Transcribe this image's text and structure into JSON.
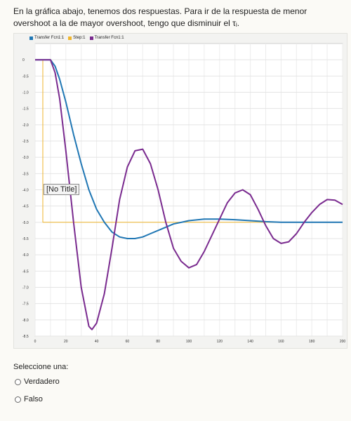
{
  "question": {
    "text": "En la gráfica abajo, tenemos dos respuestas. Para ir de la respuesta de menor overshoot a la de mayor overshoot, tengo que disminuir el τᵢ."
  },
  "chart": {
    "tooltip_text": "[No Title]",
    "legend": [
      {
        "label": "Transfer Fcn1:1",
        "color": "#2077b4"
      },
      {
        "label": "Step:1",
        "color": "#efb52c"
      },
      {
        "label": "Transfer Fcn1:1",
        "color": "#7a2b8f"
      }
    ]
  },
  "chart_data": {
    "type": "line",
    "xlim": [
      0,
      200
    ],
    "ylim": [
      -8.5,
      0.5
    ],
    "x_ticks": [
      0,
      20,
      40,
      60,
      80,
      100,
      120,
      140,
      160,
      180,
      200
    ],
    "x_tick_labels": [
      "0",
      "20",
      "40",
      "60",
      "80",
      "100",
      "120",
      "140",
      "160",
      "180",
      "200"
    ],
    "y_ticks": [
      0,
      -0.5,
      -1,
      -1.5,
      -2,
      -2.5,
      -3,
      -3.5,
      -4,
      -4.5,
      -5,
      -5.5,
      -6,
      -6.5,
      -7,
      -7.5,
      -8,
      -8.5
    ],
    "y_tick_labels": [
      "0",
      "-0.5",
      "-1.0",
      "-1.5",
      "-2.0",
      "-2.5",
      "-3.0",
      "-3.5",
      "-4.0",
      "-4.5",
      "-5.0",
      "-5.5",
      "-6.0",
      "-6.5",
      "-7.0",
      "-7.5",
      "-8.0",
      "-8.5"
    ],
    "grid": true,
    "legend_position": "top-left",
    "series": [
      {
        "name": "Step:1",
        "color": "#efb52c",
        "x": [
          0,
          5,
          5,
          200
        ],
        "y": [
          0,
          0,
          -5,
          -5
        ]
      },
      {
        "name": "Transfer Fcn1:1",
        "color": "#2077b4",
        "x": [
          0,
          5,
          10,
          13,
          16,
          20,
          25,
          30,
          35,
          40,
          45,
          50,
          55,
          60,
          65,
          70,
          75,
          80,
          85,
          90,
          100,
          110,
          120,
          130,
          140,
          150,
          160,
          180,
          200
        ],
        "y": [
          0,
          0,
          0,
          -0.2,
          -0.6,
          -1.3,
          -2.3,
          -3.2,
          -4.0,
          -4.6,
          -5.0,
          -5.3,
          -5.45,
          -5.5,
          -5.5,
          -5.45,
          -5.35,
          -5.25,
          -5.15,
          -5.05,
          -4.95,
          -4.9,
          -4.9,
          -4.92,
          -4.95,
          -4.98,
          -5.0,
          -5.0,
          -5.0
        ]
      },
      {
        "name": "Transfer Fcn1:1",
        "color": "#7a2b8f",
        "x": [
          0,
          5,
          10,
          13,
          16,
          20,
          25,
          30,
          35,
          37,
          40,
          45,
          50,
          55,
          60,
          65,
          70,
          75,
          80,
          85,
          90,
          95,
          100,
          105,
          110,
          120,
          125,
          130,
          135,
          140,
          145,
          150,
          155,
          160,
          165,
          170,
          175,
          180,
          185,
          190,
          195,
          200
        ],
        "y": [
          0,
          0,
          0,
          -0.4,
          -1.2,
          -2.8,
          -5.0,
          -7.0,
          -8.2,
          -8.3,
          -8.1,
          -7.2,
          -5.8,
          -4.3,
          -3.3,
          -2.8,
          -2.75,
          -3.2,
          -4.0,
          -5.0,
          -5.8,
          -6.2,
          -6.4,
          -6.3,
          -5.9,
          -4.9,
          -4.4,
          -4.1,
          -4.0,
          -4.15,
          -4.6,
          -5.1,
          -5.5,
          -5.65,
          -5.6,
          -5.35,
          -5.0,
          -4.7,
          -4.45,
          -4.3,
          -4.32,
          -4.45
        ]
      }
    ]
  },
  "answer": {
    "prompt": "Seleccione una:",
    "options": [
      {
        "label": "Verdadero"
      },
      {
        "label": "Falso"
      }
    ]
  }
}
